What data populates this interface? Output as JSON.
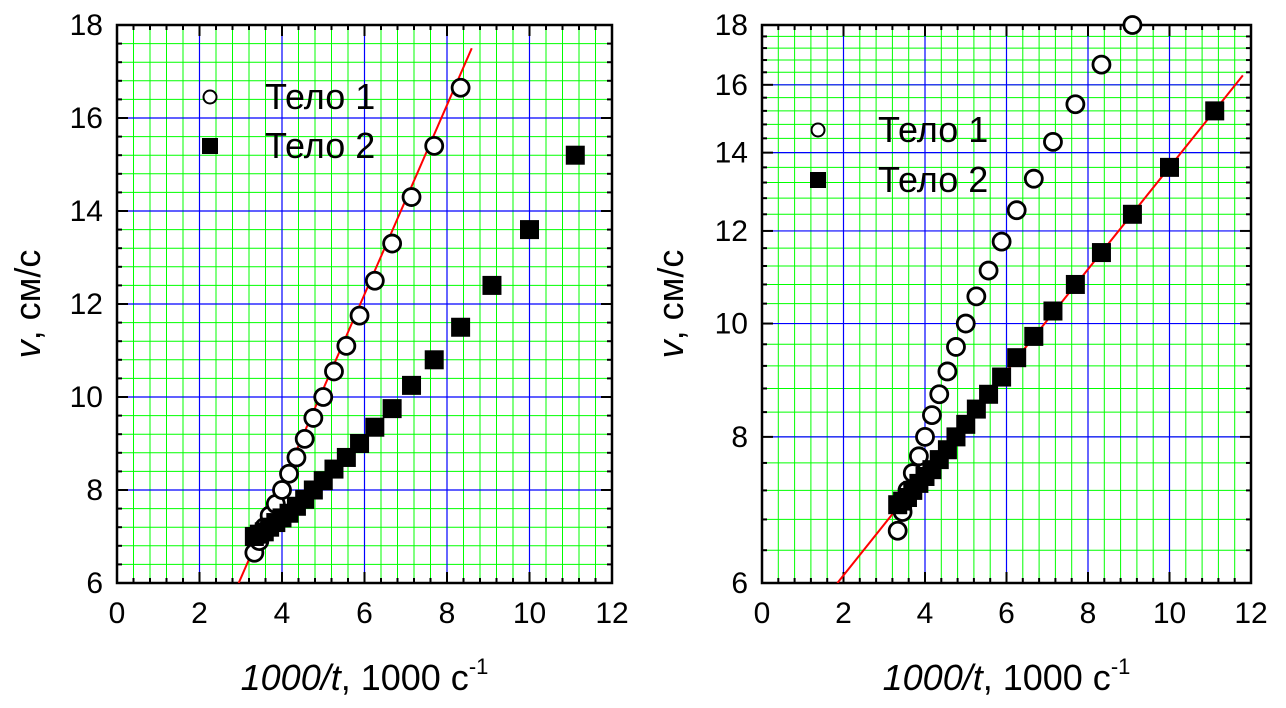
{
  "chart_data": [
    {
      "type": "scatter",
      "xlabel_italic": "1000/t",
      "xlabel_rest": ", 1000 с",
      "xlabel_sup": "-1",
      "ylabel_italic": "v",
      "ylabel_rest": ", см/с",
      "xlim": [
        0,
        12
      ],
      "ylim": [
        6,
        18
      ],
      "yscale": "linear",
      "xticks": [
        0,
        2,
        4,
        6,
        8,
        10,
        12
      ],
      "yticks": [
        6,
        8,
        10,
        12,
        14,
        16,
        18
      ],
      "grid": true,
      "legend_position": "top-left",
      "series": [
        {
          "name": "Тело 1",
          "marker": "open-circle",
          "x": [
            3.33,
            3.45,
            3.57,
            3.7,
            3.85,
            4.0,
            4.17,
            4.35,
            4.55,
            4.76,
            5.0,
            5.26,
            5.56,
            5.88,
            6.25,
            6.67,
            7.14,
            7.69,
            8.33
          ],
          "y": [
            6.65,
            6.9,
            7.2,
            7.45,
            7.7,
            8.0,
            8.35,
            8.7,
            9.1,
            9.55,
            10.0,
            10.55,
            11.1,
            11.75,
            12.5,
            13.3,
            14.3,
            15.4,
            16.65
          ]
        },
        {
          "name": "Тело 2",
          "marker": "filled-square",
          "x": [
            3.33,
            3.45,
            3.57,
            3.7,
            3.85,
            4.0,
            4.17,
            4.35,
            4.55,
            4.76,
            5.0,
            5.26,
            5.56,
            5.88,
            6.25,
            6.67,
            7.14,
            7.69,
            8.33,
            9.09,
            10.0,
            11.11
          ],
          "y": [
            7.0,
            7.05,
            7.1,
            7.2,
            7.3,
            7.4,
            7.5,
            7.65,
            7.8,
            8.0,
            8.2,
            8.45,
            8.7,
            9.0,
            9.35,
            9.75,
            10.25,
            10.8,
            11.5,
            12.4,
            13.6,
            15.2
          ]
        }
      ],
      "fit_line": {
        "x": [
          2.95,
          8.6
        ],
        "y": [
          6.0,
          17.5
        ],
        "color": "#ff0000"
      },
      "colors": {
        "major_grid": "#0000ff",
        "minor_grid": "#00ff00",
        "background": "#ffffff",
        "fit": "#ff0000"
      }
    },
    {
      "type": "scatter",
      "xlabel_italic": "1000/t",
      "xlabel_rest": ", 1000 с",
      "xlabel_sup": "-1",
      "ylabel_italic": "v",
      "ylabel_rest": ", см/с",
      "xlim": [
        0,
        12
      ],
      "ylim": [
        6,
        18
      ],
      "yscale": "log",
      "xticks": [
        0,
        2,
        4,
        6,
        8,
        10,
        12
      ],
      "yticks": [
        6,
        8,
        10,
        12,
        14,
        16,
        18
      ],
      "grid": true,
      "legend_position": "top-left",
      "series": [
        {
          "name": "Тело 1",
          "marker": "open-circle",
          "x": [
            3.33,
            3.45,
            3.57,
            3.7,
            3.85,
            4.0,
            4.17,
            4.35,
            4.55,
            4.76,
            5.0,
            5.26,
            5.56,
            5.88,
            6.25,
            6.67,
            7.14,
            7.69,
            8.33,
            9.09
          ],
          "y": [
            6.65,
            6.9,
            7.2,
            7.45,
            7.7,
            8.0,
            8.35,
            8.7,
            9.1,
            9.55,
            10.0,
            10.55,
            11.1,
            11.75,
            12.5,
            13.3,
            14.3,
            15.4,
            16.65,
            18.0
          ]
        },
        {
          "name": "Тело 2",
          "marker": "filled-square",
          "x": [
            3.33,
            3.45,
            3.57,
            3.7,
            3.85,
            4.0,
            4.17,
            4.35,
            4.55,
            4.76,
            5.0,
            5.26,
            5.56,
            5.88,
            6.25,
            6.67,
            7.14,
            7.69,
            8.33,
            9.09,
            10.0,
            11.11
          ],
          "y": [
            7.0,
            7.05,
            7.1,
            7.2,
            7.3,
            7.4,
            7.5,
            7.65,
            7.8,
            8.0,
            8.2,
            8.45,
            8.7,
            9.0,
            9.35,
            9.75,
            10.25,
            10.8,
            11.5,
            12.4,
            13.6,
            15.2
          ]
        }
      ],
      "fit_line": {
        "x": [
          1.85,
          11.8
        ],
        "y": [
          6.0,
          16.3
        ],
        "color": "#ff0000"
      },
      "colors": {
        "major_grid": "#0000ff",
        "minor_grid": "#00ff00",
        "background": "#ffffff",
        "fit": "#ff0000"
      }
    }
  ]
}
